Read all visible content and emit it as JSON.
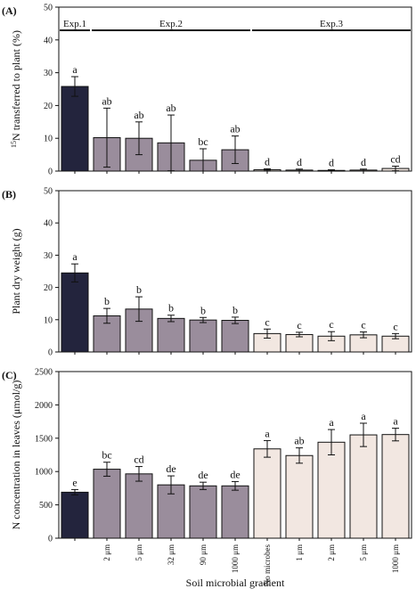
{
  "colors": {
    "exp1": "#23243d",
    "exp2": "#9a8d9c",
    "exp3": "#f2e7e1",
    "axis": "#111111"
  },
  "x_axis_title": "Soil microbial gradient",
  "categories": [
    "",
    "2 μm",
    "5 μm",
    "32 μm",
    "90 μm",
    "1000 μm",
    "No microbes",
    "1 μm",
    "2 μm",
    "5 μm",
    "1000 μm"
  ],
  "groups": [
    0,
    1,
    1,
    1,
    1,
    1,
    2,
    2,
    2,
    2,
    2
  ],
  "experiments": [
    {
      "label": "Exp.1",
      "from": 0,
      "to": 0
    },
    {
      "label": "Exp.2",
      "from": 1,
      "to": 5
    },
    {
      "label": "Exp.3",
      "from": 6,
      "to": 10
    }
  ],
  "chart_data": [
    {
      "type": "bar",
      "panel_label": "(A)",
      "ylabel_sup": "15",
      "ylabel": "N transferred to plant (%)",
      "ylim": [
        0,
        50
      ],
      "yticks": [
        0,
        10,
        20,
        30,
        40,
        50
      ],
      "values": [
        25.8,
        10.2,
        10.0,
        8.6,
        3.3,
        6.5,
        0.4,
        0.3,
        0.2,
        0.3,
        0.8
      ],
      "errors": [
        3.0,
        9.0,
        5.0,
        8.5,
        3.5,
        4.2,
        0.3,
        0.3,
        0.2,
        0.3,
        0.7
      ],
      "letters": [
        "a",
        "ab",
        "ab",
        "ab",
        "bc",
        "ab",
        "d",
        "d",
        "d",
        "d",
        "cd"
      ]
    },
    {
      "type": "bar",
      "panel_label": "(B)",
      "ylabel": "Plant dry weight (g)",
      "ylim": [
        0,
        50
      ],
      "yticks": [
        0,
        10,
        20,
        30,
        40,
        50
      ],
      "values": [
        24.5,
        11.2,
        13.3,
        10.4,
        9.9,
        9.8,
        5.7,
        5.4,
        4.9,
        5.3,
        4.9
      ],
      "errors": [
        2.8,
        2.3,
        3.8,
        1.0,
        0.8,
        1.0,
        1.4,
        0.7,
        1.4,
        0.9,
        0.8
      ],
      "letters": [
        "a",
        "b",
        "b",
        "b",
        "b",
        "b",
        "c",
        "c",
        "c",
        "c",
        "c"
      ]
    },
    {
      "type": "bar",
      "panel_label": "(C)",
      "ylabel": "N concentration in leaves (μmol/g)",
      "ylim": [
        0,
        2500
      ],
      "yticks": [
        0,
        500,
        1000,
        1500,
        2000,
        2500
      ],
      "values": [
        690,
        1035,
        965,
        800,
        785,
        785,
        1340,
        1240,
        1440,
        1550,
        1555
      ],
      "errors": [
        40,
        105,
        110,
        135,
        55,
        65,
        125,
        115,
        190,
        175,
        95
      ],
      "letters": [
        "e",
        "bc",
        "cd",
        "de",
        "de",
        "de",
        "a",
        "ab",
        "a",
        "a",
        "a"
      ]
    }
  ]
}
